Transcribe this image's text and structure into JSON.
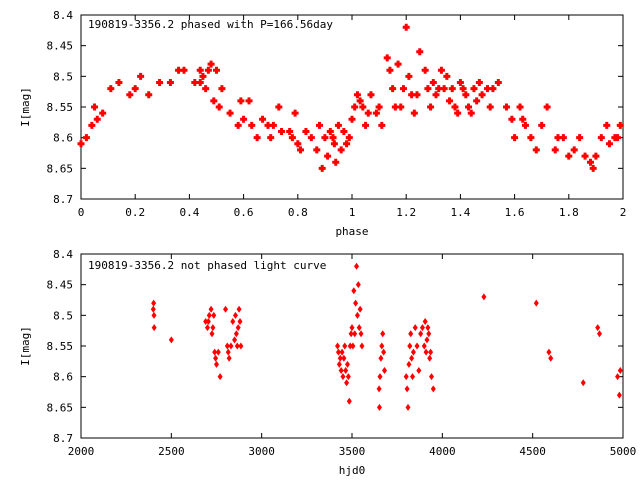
{
  "chart_data": [
    {
      "type": "scatter",
      "title": "190819-3356.2 phased with P=166.56day",
      "xlabel": "phase",
      "ylabel": "I[mag]",
      "xlim": [
        0,
        2
      ],
      "ylim": [
        8.4,
        8.7
      ],
      "y_inverted": true,
      "x_ticks": [
        "0",
        "0.2",
        "0.4",
        "0.6",
        "0.8",
        "1",
        "1.2",
        "1.4",
        "1.6",
        "1.8",
        "2"
      ],
      "y_ticks": [
        "8.4",
        "8.45",
        "8.5",
        "8.55",
        "8.6",
        "8.65",
        "8.7"
      ],
      "color": "#ff0000",
      "marker": "filled-square",
      "points": [
        [
          0.0,
          8.61
        ],
        [
          0.02,
          8.6
        ],
        [
          0.04,
          8.58
        ],
        [
          0.05,
          8.55
        ],
        [
          0.06,
          8.57
        ],
        [
          0.08,
          8.56
        ],
        [
          0.11,
          8.52
        ],
        [
          0.14,
          8.51
        ],
        [
          0.18,
          8.53
        ],
        [
          0.2,
          8.52
        ],
        [
          0.22,
          8.5
        ],
        [
          0.25,
          8.53
        ],
        [
          0.29,
          8.51
        ],
        [
          0.33,
          8.51
        ],
        [
          0.36,
          8.49
        ],
        [
          0.38,
          8.49
        ],
        [
          0.42,
          8.51
        ],
        [
          0.44,
          8.49
        ],
        [
          0.45,
          8.5
        ],
        [
          0.47,
          8.49
        ],
        [
          0.48,
          8.48
        ],
        [
          0.5,
          8.49
        ],
        [
          0.52,
          8.52
        ],
        [
          0.44,
          8.51
        ],
        [
          0.46,
          8.52
        ],
        [
          0.49,
          8.54
        ],
        [
          0.51,
          8.55
        ],
        [
          0.55,
          8.56
        ],
        [
          0.58,
          8.58
        ],
        [
          0.59,
          8.54
        ],
        [
          0.6,
          8.57
        ],
        [
          0.62,
          8.54
        ],
        [
          0.63,
          8.58
        ],
        [
          0.65,
          8.6
        ],
        [
          0.67,
          8.57
        ],
        [
          0.69,
          8.58
        ],
        [
          0.7,
          8.6
        ],
        [
          0.71,
          8.58
        ],
        [
          0.73,
          8.55
        ],
        [
          0.74,
          8.59
        ],
        [
          0.77,
          8.59
        ],
        [
          0.78,
          8.6
        ],
        [
          0.79,
          8.56
        ],
        [
          0.8,
          8.61
        ],
        [
          0.81,
          8.62
        ],
        [
          0.83,
          8.59
        ],
        [
          0.85,
          8.6
        ],
        [
          0.87,
          8.62
        ],
        [
          0.88,
          8.58
        ],
        [
          0.89,
          8.65
        ],
        [
          0.9,
          8.6
        ],
        [
          0.91,
          8.63
        ],
        [
          0.92,
          8.59
        ],
        [
          0.93,
          8.6
        ],
        [
          0.935,
          8.61
        ],
        [
          0.94,
          8.64
        ],
        [
          0.95,
          8.58
        ],
        [
          0.96,
          8.62
        ],
        [
          0.97,
          8.59
        ],
        [
          0.98,
          8.61
        ],
        [
          0.99,
          8.6
        ],
        [
          1.0,
          8.57
        ],
        [
          1.01,
          8.55
        ],
        [
          1.02,
          8.53
        ],
        [
          1.03,
          8.54
        ],
        [
          1.04,
          8.55
        ],
        [
          1.05,
          8.58
        ],
        [
          1.06,
          8.56
        ],
        [
          1.07,
          8.53
        ],
        [
          1.09,
          8.56
        ],
        [
          1.1,
          8.55
        ],
        [
          1.11,
          8.58
        ],
        [
          1.13,
          8.47
        ],
        [
          1.14,
          8.49
        ],
        [
          1.15,
          8.52
        ],
        [
          1.16,
          8.55
        ],
        [
          1.17,
          8.48
        ],
        [
          1.18,
          8.55
        ],
        [
          1.19,
          8.52
        ],
        [
          1.2,
          8.42
        ],
        [
          1.21,
          8.5
        ],
        [
          1.22,
          8.53
        ],
        [
          1.23,
          8.56
        ],
        [
          1.24,
          8.53
        ],
        [
          1.25,
          8.46
        ],
        [
          1.27,
          8.49
        ],
        [
          1.28,
          8.52
        ],
        [
          1.29,
          8.55
        ],
        [
          1.3,
          8.51
        ],
        [
          1.31,
          8.53
        ],
        [
          1.32,
          8.52
        ],
        [
          1.33,
          8.49
        ],
        [
          1.34,
          8.52
        ],
        [
          1.35,
          8.5
        ],
        [
          1.36,
          8.54
        ],
        [
          1.37,
          8.52
        ],
        [
          1.38,
          8.55
        ],
        [
          1.39,
          8.56
        ],
        [
          1.4,
          8.51
        ],
        [
          1.41,
          8.52
        ],
        [
          1.42,
          8.53
        ],
        [
          1.43,
          8.55
        ],
        [
          1.44,
          8.56
        ],
        [
          1.45,
          8.52
        ],
        [
          1.46,
          8.54
        ],
        [
          1.47,
          8.51
        ],
        [
          1.48,
          8.53
        ],
        [
          1.5,
          8.52
        ],
        [
          1.51,
          8.55
        ],
        [
          1.52,
          8.52
        ],
        [
          1.54,
          8.51
        ],
        [
          1.57,
          8.55
        ],
        [
          1.59,
          8.57
        ],
        [
          1.6,
          8.6
        ],
        [
          1.62,
          8.55
        ],
        [
          1.63,
          8.57
        ],
        [
          1.64,
          8.58
        ],
        [
          1.66,
          8.6
        ],
        [
          1.68,
          8.62
        ],
        [
          1.7,
          8.58
        ],
        [
          1.72,
          8.55
        ],
        [
          1.75,
          8.62
        ],
        [
          1.76,
          8.6
        ],
        [
          1.78,
          8.6
        ],
        [
          1.8,
          8.63
        ],
        [
          1.82,
          8.62
        ],
        [
          1.84,
          8.6
        ],
        [
          1.86,
          8.63
        ],
        [
          1.88,
          8.64
        ],
        [
          1.89,
          8.65
        ],
        [
          1.9,
          8.63
        ],
        [
          1.92,
          8.6
        ],
        [
          1.94,
          8.58
        ],
        [
          1.95,
          8.61
        ],
        [
          1.97,
          8.6
        ],
        [
          1.98,
          8.6
        ],
        [
          1.99,
          8.58
        ]
      ]
    },
    {
      "type": "scatter",
      "title": "190819-3356.2 not phased light curve",
      "xlabel": "hjd0",
      "ylabel": "I[mag]",
      "xlim": [
        2000,
        5000
      ],
      "ylim": [
        8.4,
        8.7
      ],
      "y_inverted": true,
      "x_ticks": [
        "2000",
        "2500",
        "3000",
        "3500",
        "4000",
        "4500",
        "5000"
      ],
      "y_ticks": [
        "8.4",
        "8.45",
        "8.5",
        "8.55",
        "8.6",
        "8.65",
        "8.7"
      ],
      "color": "#ff0000",
      "marker": "diamond",
      "points": [
        [
          2400,
          8.49
        ],
        [
          2402,
          8.48
        ],
        [
          2404,
          8.5
        ],
        [
          2405,
          8.52
        ],
        [
          2500,
          8.54
        ],
        [
          2690,
          8.51
        ],
        [
          2700,
          8.52
        ],
        [
          2705,
          8.51
        ],
        [
          2710,
          8.5
        ],
        [
          2720,
          8.49
        ],
        [
          2725,
          8.53
        ],
        [
          2730,
          8.52
        ],
        [
          2735,
          8.5
        ],
        [
          2740,
          8.56
        ],
        [
          2745,
          8.57
        ],
        [
          2750,
          8.58
        ],
        [
          2760,
          8.56
        ],
        [
          2770,
          8.6
        ],
        [
          2800,
          8.49
        ],
        [
          2810,
          8.55
        ],
        [
          2815,
          8.56
        ],
        [
          2820,
          8.57
        ],
        [
          2830,
          8.55
        ],
        [
          2840,
          8.51
        ],
        [
          2850,
          8.54
        ],
        [
          2855,
          8.5
        ],
        [
          2860,
          8.53
        ],
        [
          2865,
          8.55
        ],
        [
          2870,
          8.52
        ],
        [
          2875,
          8.49
        ],
        [
          2880,
          8.51
        ],
        [
          2885,
          8.55
        ],
        [
          3420,
          8.55
        ],
        [
          3425,
          8.56
        ],
        [
          3430,
          8.58
        ],
        [
          3435,
          8.57
        ],
        [
          3440,
          8.59
        ],
        [
          3445,
          8.56
        ],
        [
          3450,
          8.6
        ],
        [
          3455,
          8.57
        ],
        [
          3460,
          8.55
        ],
        [
          3465,
          8.59
        ],
        [
          3470,
          8.61
        ],
        [
          3475,
          8.58
        ],
        [
          3480,
          8.6
        ],
        [
          3485,
          8.64
        ],
        [
          3490,
          8.55
        ],
        [
          3495,
          8.53
        ],
        [
          3500,
          8.52
        ],
        [
          3505,
          8.55
        ],
        [
          3510,
          8.46
        ],
        [
          3515,
          8.53
        ],
        [
          3520,
          8.48
        ],
        [
          3525,
          8.42
        ],
        [
          3530,
          8.5
        ],
        [
          3535,
          8.45
        ],
        [
          3540,
          8.52
        ],
        [
          3545,
          8.49
        ],
        [
          3550,
          8.53
        ],
        [
          3555,
          8.55
        ],
        [
          3650,
          8.62
        ],
        [
          3652,
          8.65
        ],
        [
          3655,
          8.6
        ],
        [
          3660,
          8.57
        ],
        [
          3665,
          8.55
        ],
        [
          3670,
          8.53
        ],
        [
          3675,
          8.56
        ],
        [
          3680,
          8.59
        ],
        [
          3800,
          8.6
        ],
        [
          3805,
          8.62
        ],
        [
          3810,
          8.65
        ],
        [
          3815,
          8.58
        ],
        [
          3820,
          8.55
        ],
        [
          3825,
          8.53
        ],
        [
          3830,
          8.57
        ],
        [
          3835,
          8.6
        ],
        [
          3840,
          8.56
        ],
        [
          3850,
          8.52
        ],
        [
          3860,
          8.55
        ],
        [
          3870,
          8.59
        ],
        [
          3880,
          8.53
        ],
        [
          3890,
          8.52
        ],
        [
          3900,
          8.55
        ],
        [
          3905,
          8.51
        ],
        [
          3910,
          8.56
        ],
        [
          3915,
          8.54
        ],
        [
          3920,
          8.52
        ],
        [
          3925,
          8.53
        ],
        [
          3930,
          8.57
        ],
        [
          3935,
          8.56
        ],
        [
          3940,
          8.6
        ],
        [
          3950,
          8.62
        ],
        [
          4230,
          8.47
        ],
        [
          4520,
          8.48
        ],
        [
          4590,
          8.56
        ],
        [
          4600,
          8.57
        ],
        [
          4780,
          8.61
        ],
        [
          4860,
          8.52
        ],
        [
          4870,
          8.53
        ],
        [
          4970,
          8.6
        ],
        [
          4980,
          8.63
        ],
        [
          4985,
          8.59
        ]
      ]
    }
  ]
}
